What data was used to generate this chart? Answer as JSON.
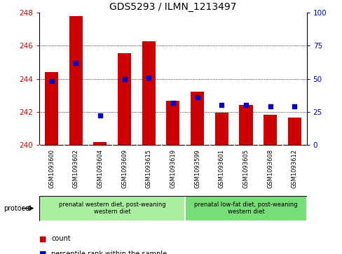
{
  "title": "GDS5293 / ILMN_1213497",
  "samples": [
    "GSM1093600",
    "GSM1093602",
    "GSM1093604",
    "GSM1093609",
    "GSM1093615",
    "GSM1093619",
    "GSM1093599",
    "GSM1093601",
    "GSM1093605",
    "GSM1093608",
    "GSM1093612"
  ],
  "count_values": [
    244.4,
    247.8,
    240.15,
    245.55,
    246.25,
    242.65,
    243.2,
    241.95,
    242.4,
    241.8,
    241.65
  ],
  "percentile_values": [
    48,
    62,
    22,
    50,
    51,
    32,
    36,
    30,
    30,
    29,
    29
  ],
  "ylim_left": [
    240,
    248
  ],
  "ylim_right": [
    0,
    100
  ],
  "yticks_left": [
    240,
    242,
    244,
    246,
    248
  ],
  "yticks_right": [
    0,
    25,
    50,
    75,
    100
  ],
  "bar_color": "#cc0000",
  "dot_color": "#0000cc",
  "bar_width": 0.55,
  "group1_indices": [
    0,
    1,
    2,
    3,
    4,
    5
  ],
  "group2_indices": [
    6,
    7,
    8,
    9,
    10
  ],
  "group1_label": "prenatal western diet, post-weaning\nwestern diet",
  "group2_label": "prenatal low-fat diet, post-weaning\nwestern diet",
  "group1_color": "#aaeea0",
  "group2_color": "#77dd77",
  "xtick_bg_color": "#cccccc",
  "protocol_label": "protocol",
  "legend_count_label": "count",
  "legend_pct_label": "percentile rank within the sample",
  "title_fontsize": 10,
  "axis_label_fontsize": 7.5,
  "ylabel_left_color": "#cc0000",
  "ylabel_right_color": "#0000cc",
  "background_color": "#ffffff",
  "ybase": 240,
  "grid_yticks": [
    242,
    244,
    246
  ]
}
